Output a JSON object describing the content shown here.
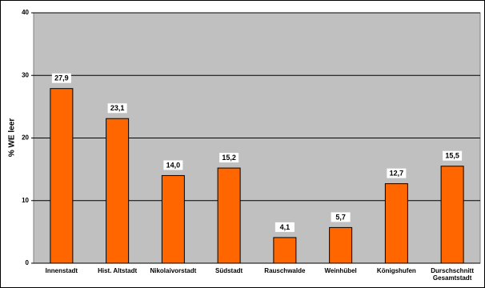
{
  "chart_data": {
    "type": "bar",
    "ylabel": "% WE leer",
    "categories": [
      "Innenstadt",
      "Hist. Altstadt",
      "Nikolaivorstadt",
      "Südstadt",
      "Rauschwalde",
      "Weinhübel",
      "Königshufen",
      "Durschschnitt Gesamtstadt"
    ],
    "values": [
      27.9,
      23.1,
      14.0,
      15.2,
      4.1,
      5.7,
      12.7,
      15.5
    ],
    "value_labels": [
      "27,9",
      "23,1",
      "14,0",
      "15,2",
      "4,1",
      "5,7",
      "12,7",
      "15,5"
    ],
    "color": "#ff6600",
    "ylim": [
      0,
      40
    ],
    "yticks": [
      0,
      10,
      20,
      30,
      40
    ],
    "grid": true
  }
}
